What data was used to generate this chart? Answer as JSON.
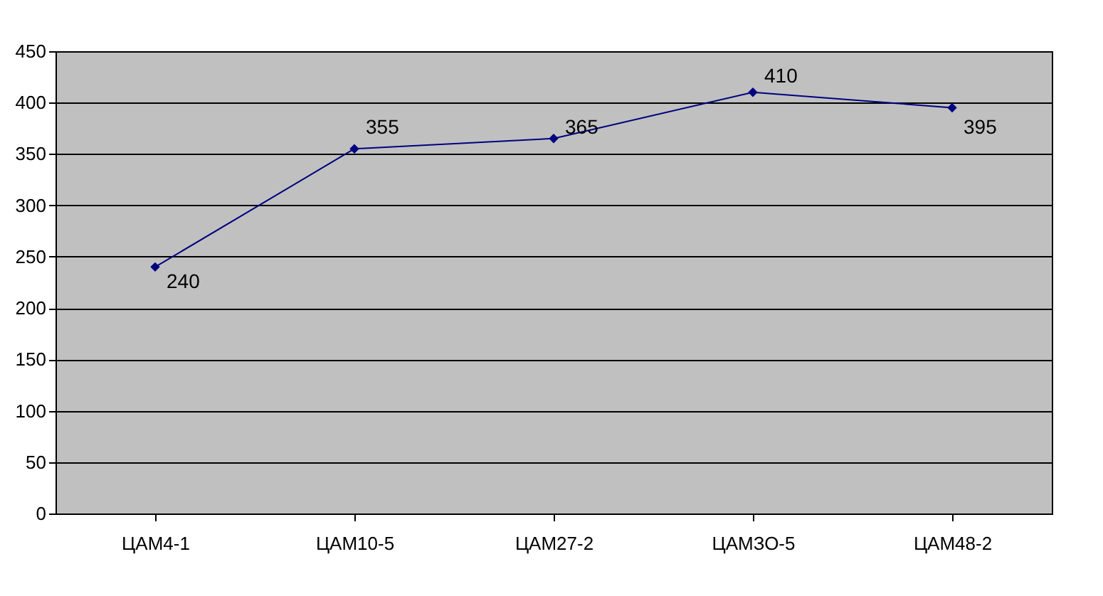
{
  "chart_data": {
    "type": "line",
    "categories": [
      "ЦАМ4-1",
      "ЦАМ10-5",
      "ЦАМ27-2",
      "ЦАМЗО-5",
      "ЦАМ48-2"
    ],
    "series": [
      {
        "color": "#000080",
        "values": [
          240,
          355,
          365,
          410,
          395
        ]
      }
    ],
    "ylim": [
      0,
      450
    ],
    "yticks": [
      0,
      50,
      100,
      150,
      200,
      250,
      300,
      350,
      400,
      450
    ],
    "grid": "y",
    "marker": "diamond",
    "line_style": "solid",
    "data_labels": true,
    "legend": false
  }
}
